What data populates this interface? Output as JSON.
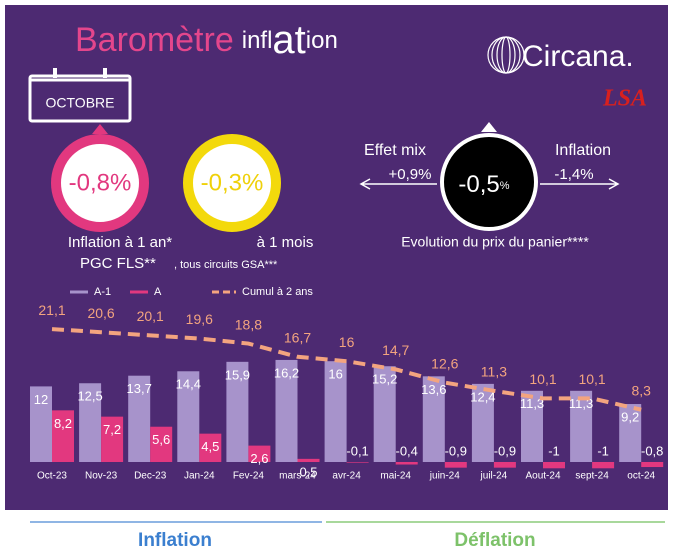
{
  "header": {
    "title_parts": [
      "Baromètre",
      "infl",
      "at",
      "ion"
    ],
    "logo": "Circana.",
    "logo2": "LSA",
    "month": "OCTOBRE",
    "year_value": "-0,8%",
    "month_value": "-0,3%",
    "year_label": "Inflation à 1 an*",
    "month_label": "à 1 mois",
    "scope": "PGC FLS**",
    "scope_note": ", tous circuits GSA***",
    "mix_label": "Effet mix",
    "mix_value": "+0,9%",
    "basket_value": "-0,5",
    "basket_unit": "%",
    "inflation_label": "Inflation",
    "inflation_value": "-1,4%",
    "basket_label": "Evolution du prix du panier****"
  },
  "chart_data": {
    "type": "bar",
    "categories": [
      "Oct-23",
      "Nov-23",
      "Dec-23",
      "Jan-24",
      "Fev-24",
      "mars-24",
      "avr-24",
      "mai-24",
      "juin-24",
      "juil-24",
      "Aout-24",
      "sept-24",
      "oct-24"
    ],
    "series": [
      {
        "name": "A-1",
        "type": "bar",
        "color": "#a793cb",
        "values": [
          12,
          12.5,
          13.7,
          14.4,
          15.9,
          16.2,
          16,
          15.2,
          13.6,
          12.4,
          11.3,
          11.3,
          9.2
        ],
        "value_labels": [
          "12",
          "12,5",
          "13,7",
          "14,4",
          "15,9",
          "16,2",
          "16",
          "15,2",
          "13,6",
          "12,4",
          "11,3",
          "11,3",
          "9,2"
        ]
      },
      {
        "name": "A",
        "type": "bar",
        "color": "#e2387f",
        "values": [
          8.2,
          7.2,
          5.6,
          4.5,
          2.6,
          0.5,
          -0.1,
          -0.4,
          -0.9,
          -0.9,
          -1,
          -1,
          -0.8
        ],
        "value_labels": [
          "8,2",
          "7,2",
          "5,6",
          "4,5",
          "2,6",
          "0,5",
          "-0,1",
          "-0,4",
          "-0,9",
          "-0,9",
          "-1",
          "-1",
          "-0,8"
        ]
      },
      {
        "name": "Cumul à 2 ans",
        "type": "line",
        "color": "#f3a47f",
        "values": [
          21.1,
          20.6,
          20.1,
          19.6,
          18.8,
          16.7,
          16,
          14.7,
          12.6,
          11.3,
          10.1,
          10.1,
          8.3
        ],
        "value_labels": [
          "21,1",
          "20,6",
          "20,1",
          "19,6",
          "18,8",
          "16,7",
          "16",
          "14,7",
          "12,6",
          "11,3",
          "10,1",
          "10,1",
          "8,3"
        ]
      }
    ]
  },
  "footer": {
    "left": "Inflation",
    "right": "Déflation"
  }
}
